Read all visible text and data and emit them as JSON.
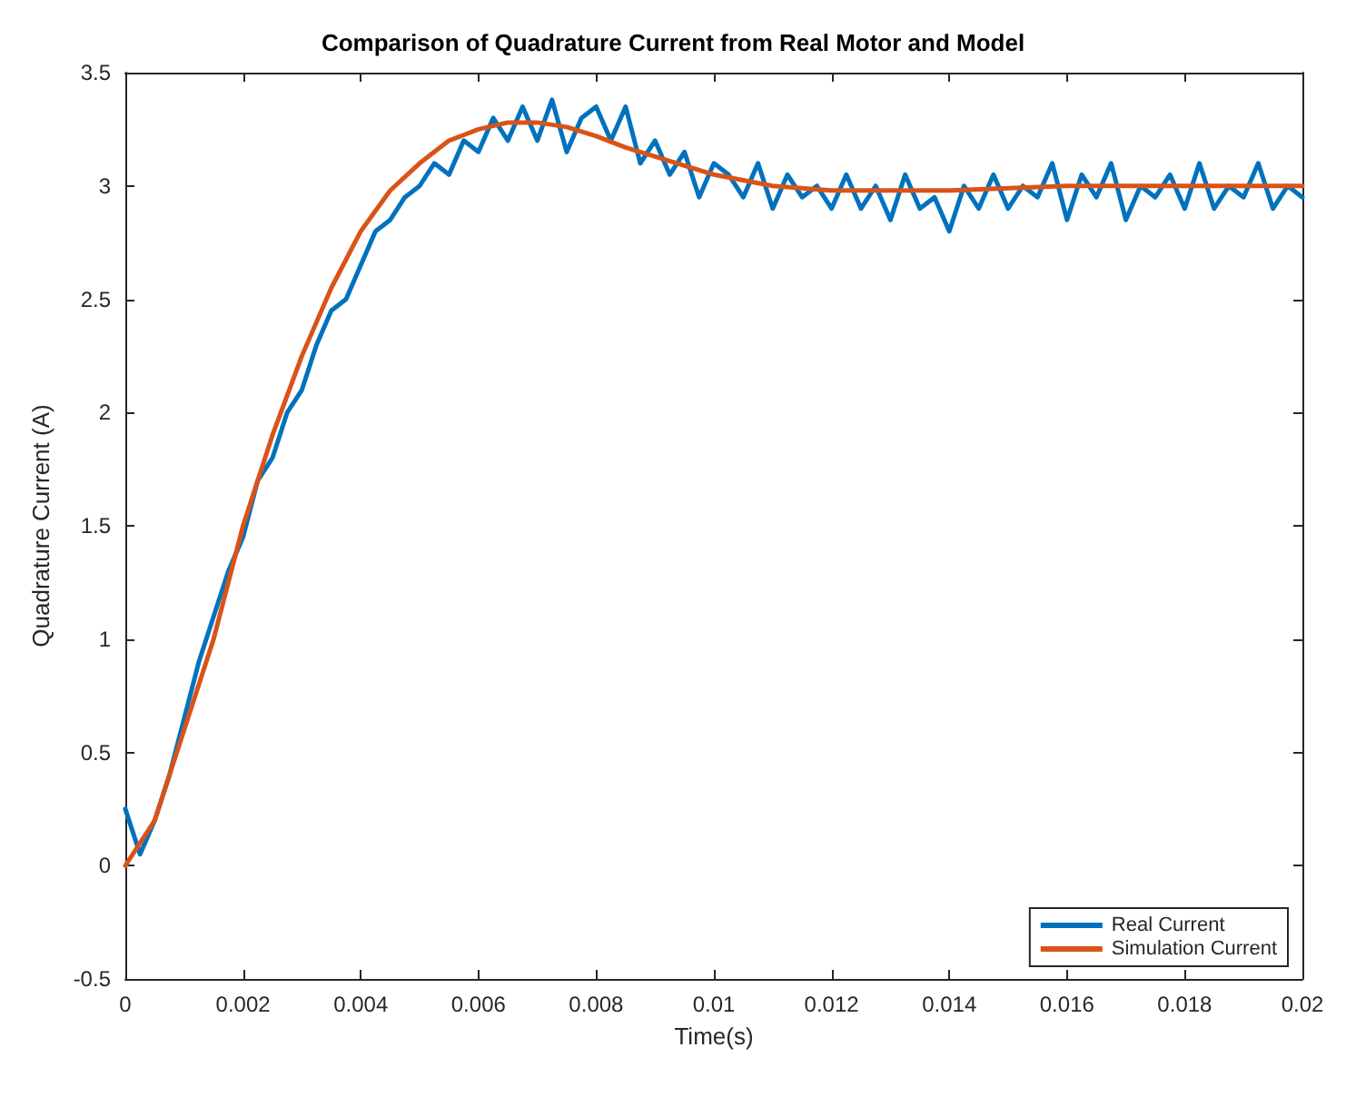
{
  "chart_data": {
    "type": "line",
    "title": "Comparison of Quadrature Current from Real Motor and Model",
    "xlabel": "Time(s)",
    "ylabel": "Quadrature Current (A)",
    "xlim": [
      0,
      0.02
    ],
    "ylim": [
      -0.5,
      3.5
    ],
    "xticks": [
      0,
      0.002,
      0.004,
      0.006,
      0.008,
      0.01,
      0.012,
      0.014,
      0.016,
      0.018,
      0.02
    ],
    "yticks": [
      -0.5,
      0,
      0.5,
      1,
      1.5,
      2,
      2.5,
      3,
      3.5
    ],
    "grid": false,
    "legend": "bottom right",
    "marker": "none",
    "line_style": "solid",
    "series": [
      {
        "name": "Real Current",
        "color": "#0072bd",
        "x": [
          0,
          0.00025,
          0.0005,
          0.00075,
          0.001,
          0.00125,
          0.0015,
          0.00175,
          0.002,
          0.00225,
          0.0025,
          0.00275,
          0.003,
          0.00325,
          0.0035,
          0.00375,
          0.004,
          0.00425,
          0.0045,
          0.00475,
          0.005,
          0.00525,
          0.0055,
          0.00575,
          0.006,
          0.00625,
          0.0065,
          0.00675,
          0.007,
          0.00725,
          0.0075,
          0.00775,
          0.008,
          0.00825,
          0.0085,
          0.00875,
          0.009,
          0.00925,
          0.0095,
          0.00975,
          0.01,
          0.01025,
          0.0105,
          0.01075,
          0.011,
          0.01125,
          0.0115,
          0.01175,
          0.012,
          0.01225,
          0.0125,
          0.01275,
          0.013,
          0.01325,
          0.0135,
          0.01375,
          0.014,
          0.01425,
          0.0145,
          0.01475,
          0.015,
          0.01525,
          0.0155,
          0.01575,
          0.016,
          0.01625,
          0.0165,
          0.01675,
          0.017,
          0.01725,
          0.0175,
          0.01775,
          0.018,
          0.01825,
          0.0185,
          0.01875,
          0.019,
          0.01925,
          0.0195,
          0.01975,
          0.02
        ],
        "values": [
          0.25,
          0.05,
          0.2,
          0.4,
          0.65,
          0.9,
          1.1,
          1.3,
          1.45,
          1.7,
          1.8,
          2.0,
          2.1,
          2.3,
          2.45,
          2.5,
          2.65,
          2.8,
          2.85,
          2.95,
          3.0,
          3.1,
          3.05,
          3.2,
          3.15,
          3.3,
          3.2,
          3.35,
          3.2,
          3.38,
          3.15,
          3.3,
          3.35,
          3.2,
          3.35,
          3.1,
          3.2,
          3.05,
          3.15,
          2.95,
          3.1,
          3.05,
          2.95,
          3.1,
          2.9,
          3.05,
          2.95,
          3.0,
          2.9,
          3.05,
          2.9,
          3.0,
          2.85,
          3.05,
          2.9,
          2.95,
          2.8,
          3.0,
          2.9,
          3.05,
          2.9,
          3.0,
          2.95,
          3.1,
          2.85,
          3.05,
          2.95,
          3.1,
          2.85,
          3.0,
          2.95,
          3.05,
          2.9,
          3.1,
          2.9,
          3.0,
          2.95,
          3.1,
          2.9,
          3.0,
          2.95
        ]
      },
      {
        "name": "Simulation Current",
        "color": "#d95319",
        "x": [
          0,
          0.0005,
          0.001,
          0.0015,
          0.002,
          0.0025,
          0.003,
          0.0035,
          0.004,
          0.0045,
          0.005,
          0.0055,
          0.006,
          0.0065,
          0.007,
          0.0075,
          0.008,
          0.0085,
          0.009,
          0.0095,
          0.01,
          0.011,
          0.012,
          0.013,
          0.014,
          0.015,
          0.016,
          0.018,
          0.02
        ],
        "values": [
          0,
          0.2,
          0.6,
          1.0,
          1.5,
          1.9,
          2.25,
          2.55,
          2.8,
          2.98,
          3.1,
          3.2,
          3.25,
          3.28,
          3.28,
          3.26,
          3.22,
          3.17,
          3.13,
          3.09,
          3.05,
          3.0,
          2.98,
          2.98,
          2.98,
          2.99,
          3.0,
          3.0,
          3.0
        ]
      }
    ]
  }
}
